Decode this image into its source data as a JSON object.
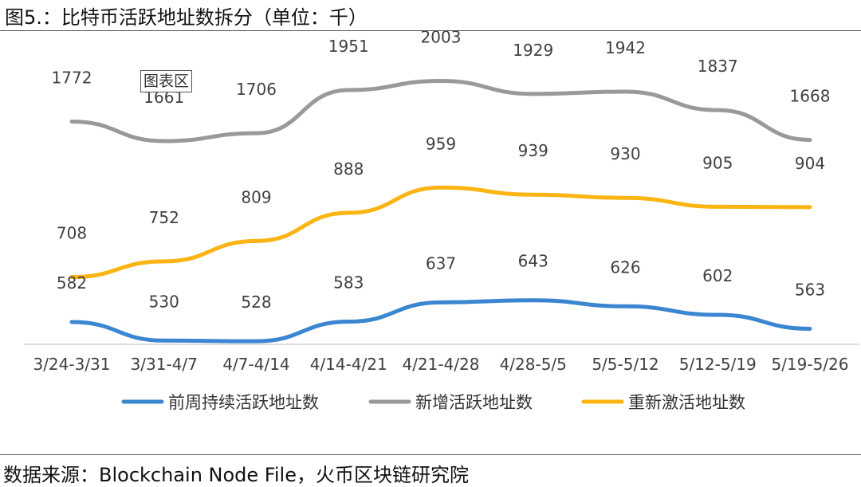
{
  "header": {
    "title": "图5.：比特币活跃地址数拆分（单位：千）"
  },
  "footer": {
    "source": "数据来源：Blockchain Node File，火币区块链研究院"
  },
  "plot_label": "图表区",
  "chart_data": {
    "type": "line",
    "title": "图5.：比特币活跃地址数拆分（单位：千）",
    "categories": [
      "3/24-3/31",
      "3/31-4/7",
      "4/7-4/14",
      "4/14-4/21",
      "4/21-4/28",
      "4/28-5/5",
      "5/5-5/12",
      "5/12-5/19",
      "5/19-5/26"
    ],
    "series": [
      {
        "name": "前周持续活跃地址数",
        "color": "#3a86d0",
        "values": [
          582,
          530,
          528,
          583,
          637,
          643,
          626,
          602,
          563
        ]
      },
      {
        "name": "新增活跃地址数",
        "color": "#999999",
        "values": [
          1772,
          1661,
          1706,
          1951,
          2003,
          1929,
          1942,
          1837,
          1668
        ]
      },
      {
        "name": "重新激活地址数",
        "color": "#fbb414",
        "values": [
          708,
          752,
          809,
          888,
          959,
          939,
          930,
          905,
          904
        ]
      }
    ],
    "data_labels": true,
    "legend_position": "bottom",
    "grid": false
  }
}
